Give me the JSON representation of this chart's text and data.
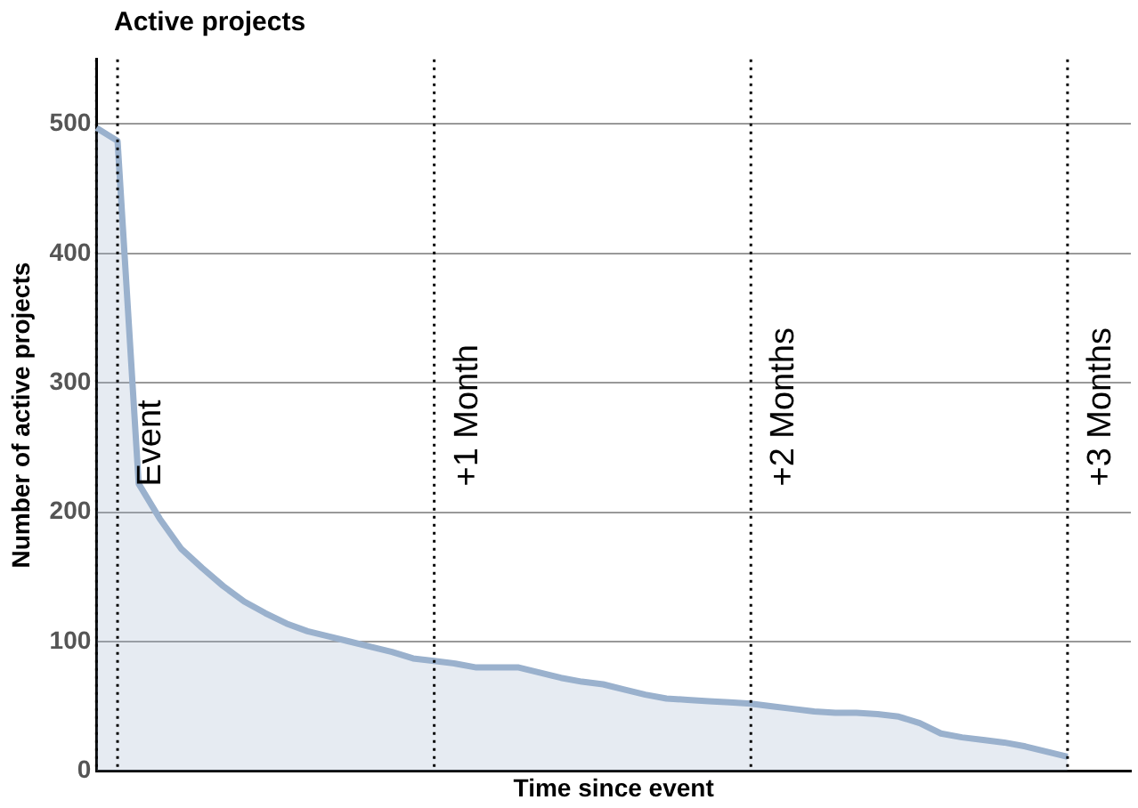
{
  "chart_data": {
    "type": "area",
    "title": "Active projects",
    "xlabel": "Time since event",
    "ylabel": "Number of active projects",
    "categories": [
      null,
      null,
      null,
      null,
      null,
      null,
      null,
      null,
      null,
      null,
      null,
      null,
      null,
      null,
      null,
      null,
      null,
      null,
      null,
      null,
      null,
      null,
      null,
      null,
      null,
      null,
      null,
      null,
      null,
      null,
      null,
      null,
      null,
      null,
      null,
      null,
      null,
      null,
      null,
      null,
      null,
      null,
      null,
      null,
      null,
      null,
      null,
      null,
      null,
      null
    ],
    "series": [
      {
        "color": "#9ab1cd",
        "values": [
          497,
          487,
          222,
          195,
          172,
          157,
          143,
          131,
          122,
          114,
          108,
          104,
          100,
          96,
          92,
          87,
          85,
          83,
          80,
          80,
          80,
          76,
          72,
          69,
          67,
          63,
          59,
          56,
          55,
          54,
          53,
          52,
          50,
          48,
          46,
          45,
          45,
          44,
          42,
          37,
          29,
          26,
          24,
          22,
          19,
          15,
          11,
          null,
          null,
          null
        ]
      }
    ],
    "ylim": [
      0,
      550
    ],
    "yticks": [
      0,
      100,
      200,
      300,
      400,
      500
    ],
    "tick_labels": "y",
    "grid": true,
    "marker": "none",
    "line_style": "solid",
    "annotations": [
      "Event",
      "+1 Month",
      "+2 Months",
      "+3 Months"
    ]
  }
}
